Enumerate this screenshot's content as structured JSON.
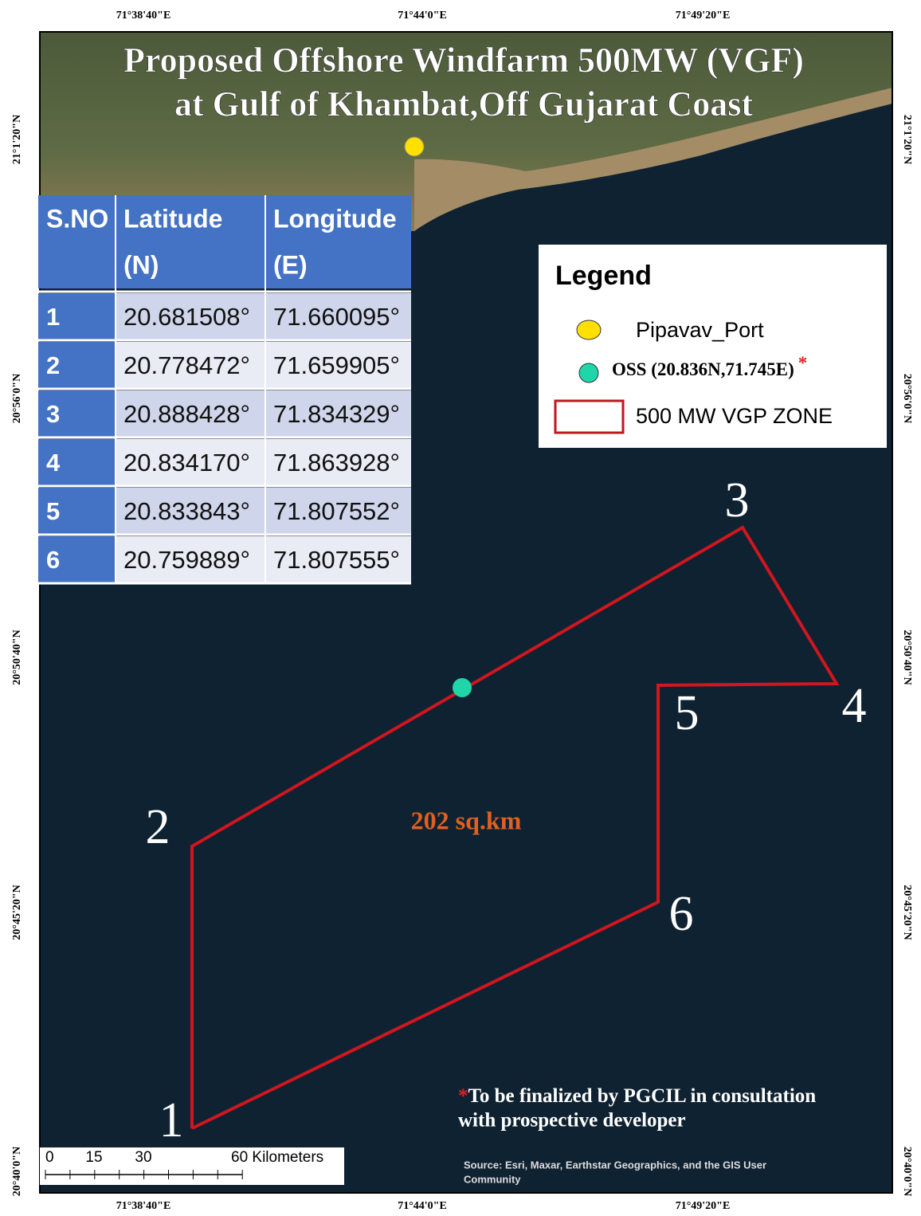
{
  "title": [
    "Proposed Offshore Windfarm 500MW (VGF)",
    "at Gulf of Khambat,Off Gujarat Coast"
  ],
  "graticule": {
    "top": [
      "71°38'40\"E",
      "71°44'0\"E",
      "71°49'20\"E"
    ],
    "bottom": [
      "71°38'40\"E",
      "71°44'0\"E",
      "71°49'20\"E"
    ],
    "left": [
      "21°1'20\"N",
      "20°56'0\"N",
      "20°50'40\"N",
      "20°45'20\"N",
      "20°40'0\"N"
    ],
    "right": [
      "21°1'20\"N",
      "20°56'0\"N",
      "20°50'40\"N",
      "20°45'20\"N",
      "20°40'0\"N"
    ]
  },
  "table": {
    "header": [
      [
        "S.NO"
      ],
      [
        "Latitude",
        "(N)"
      ],
      [
        "Longitude",
        "(E)"
      ]
    ],
    "rows": [
      [
        "1",
        "20.681508°",
        "71.660095°"
      ],
      [
        "2",
        "20.778472°",
        "71.659905°"
      ],
      [
        "3",
        "20.888428°",
        "71.834329°"
      ],
      [
        "4",
        "20.834170°",
        "71.863928°"
      ],
      [
        "5",
        "20.833843°",
        "71.807552°"
      ],
      [
        "6",
        "20.759889°",
        "71.807555°"
      ]
    ]
  },
  "legend": {
    "title": "Legend",
    "items": [
      "Pipavav_Port",
      "OSS (20.836N,71.745E)",
      "500 MW VGP ZONE"
    ],
    "asterisk": "*"
  },
  "vertices": [
    "1",
    "2",
    "3",
    "4",
    "5",
    "6"
  ],
  "area_label": "202 sq.km",
  "note": {
    "asterisk": "*",
    "lines": [
      "To be finalized by PGCIL in consultation",
      "with prospective developer"
    ]
  },
  "scale_bar": [
    "0",
    "15",
    "30",
    "60 Kilometers"
  ],
  "source": [
    "Source: Esri, Maxar, Earthstar Geographics, and the GIS User",
    "Community"
  ]
}
